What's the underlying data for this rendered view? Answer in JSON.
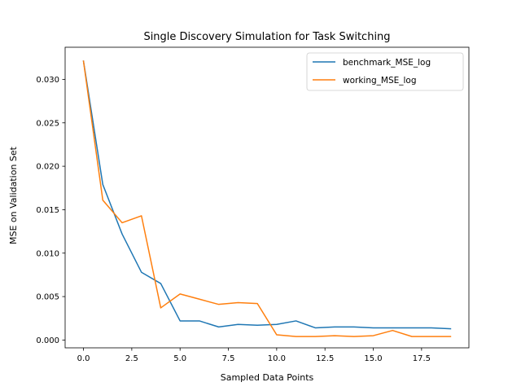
{
  "chart_data": {
    "type": "line",
    "title": "Single Discovery Simulation for Task Switching",
    "xlabel": "Sampled Data Points",
    "ylabel": "MSE on Validation Set",
    "xlim": [
      -0.95,
      19.95
    ],
    "ylim": [
      -0.0009,
      0.0337
    ],
    "xticks": [
      0.0,
      2.5,
      5.0,
      7.5,
      10.0,
      12.5,
      15.0,
      17.5
    ],
    "xtick_labels": [
      "0.0",
      "2.5",
      "5.0",
      "7.5",
      "10.0",
      "12.5",
      "15.0",
      "17.5"
    ],
    "yticks": [
      0.0,
      0.005,
      0.01,
      0.015,
      0.02,
      0.025,
      0.03
    ],
    "ytick_labels": [
      "0.000",
      "0.005",
      "0.010",
      "0.015",
      "0.020",
      "0.025",
      "0.030"
    ],
    "grid": false,
    "legend": "upper-right",
    "x": [
      0,
      1,
      2,
      3,
      4,
      5,
      6,
      7,
      8,
      9,
      10,
      11,
      12,
      13,
      14,
      15,
      16,
      17,
      18,
      19
    ],
    "series": [
      {
        "name": "benchmark_MSE_log",
        "color": "#1f77b4",
        "values": [
          0.0321,
          0.0179,
          0.0122,
          0.0078,
          0.0065,
          0.0022,
          0.0022,
          0.0015,
          0.0018,
          0.0017,
          0.0018,
          0.0022,
          0.0014,
          0.0015,
          0.0015,
          0.0014,
          0.0014,
          0.0014,
          0.0014,
          0.0013
        ]
      },
      {
        "name": "working_MSE_log",
        "color": "#ff7f0e",
        "values": [
          0.0321,
          0.0161,
          0.0135,
          0.0143,
          0.0037,
          0.0053,
          0.0047,
          0.0041,
          0.0043,
          0.0042,
          0.0006,
          0.0004,
          0.0004,
          0.0005,
          0.0004,
          0.0005,
          0.0011,
          0.0004,
          0.0004,
          0.0004
        ]
      }
    ]
  }
}
